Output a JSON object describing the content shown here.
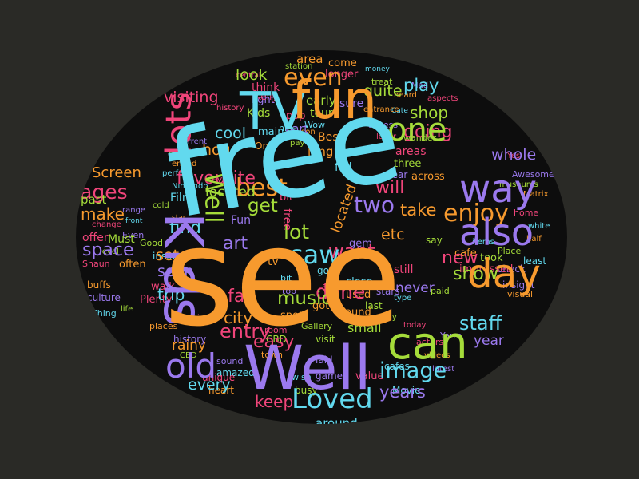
{
  "word_cloud": {
    "background_color": "#2a2a26",
    "oval_color": "#0d0d0d",
    "palette": [
      "#62d9ee",
      "#f79a2e",
      "#9b79ee",
      "#f0457a",
      "#a5dc3a"
    ],
    "words": {
      "free": "free",
      "see": "see",
      "fun": "fun",
      "tv": "TV",
      "kids": "Kids",
      "well_big": "Well",
      "can": "can",
      "also": "also",
      "day": "day",
      "lots": "lots",
      "even": "even",
      "one": "one",
      "way": "way",
      "ages": "ages",
      "well_vert": "Well",
      "old": "old",
      "image": "image",
      "loved": "Loved",
      "saw": "saw",
      "enjoy": "enjoy",
      "best": "best",
      "get": "get",
      "staff": "staff",
      "entry": "entry",
      "look": "look",
      "quite": "quite",
      "play": "play",
      "shop": "shop",
      "visiting": "visiting",
      "make": "make",
      "space": "space",
      "going": "going",
      "whole": "whole",
      "will": "will",
      "two": "two",
      "lot": "lot",
      "art": "art",
      "show": "show",
      "fan": "fan",
      "city": "city",
      "trip": "trip",
      "hour": "hour",
      "cool": "cool",
      "set": "set",
      "find": "find",
      "screen": "Screen",
      "easy": "easy",
      "keep": "keep",
      "every": "every",
      "years": "years",
      "year": "year",
      "new": "new",
      "etc": "etc",
      "take": "take",
      "tour": "tour",
      "early": "early",
      "area": "area",
      "think": "think",
      "sure": "sure",
      "fun_small": "Fun",
      "seen": "seen",
      "miss": "miss",
      "rainy": "rainy",
      "film": "Film",
      "past": "past",
      "offer": "offer",
      "never": "never",
      "done": "done",
      "want": "want",
      "located": "located",
      "favourite": "favourite",
      "must": "Must",
      "music": "music",
      "tv_small": "tv",
      "kids_small": "Kids",
      "long": "long",
      "full": "full",
      "main": "main",
      "part": "part",
      "pop": "pop",
      "small": "small",
      "game": "game",
      "movie": "Movie",
      "value": "value",
      "wish": "wish",
      "around": "around",
      "areas": "areas",
      "across": "across",
      "three": "three",
      "gem": "gem",
      "history": "history",
      "places": "places",
      "inside": "inside",
      "good": "Good",
      "plenty": "Plenty",
      "near": "near",
      "still": "still",
      "close": "close",
      "got": "got",
      "visit": "visit",
      "bit": "bit",
      "heart": "heart",
      "unique": "unique",
      "sound": "sound",
      "amazed": "amazed",
      "one_small": "One",
      "come": "come",
      "longer": "longer",
      "station": "station",
      "entrance": "entrance",
      "aspects": "aspects",
      "wander": "wander",
      "access": "access",
      "lover": "lover",
      "say": "say",
      "least": "least",
      "impressed": "impressed",
      "place": "Place",
      "items": "items",
      "took": "took",
      "cafe": "cafe",
      "check": "Check",
      "insight": "insight",
      "actors": "actors",
      "latest": "latest",
      "visual": "visual",
      "videos": "videos",
      "paid": "paid",
      "type": "type",
      "cafes": "cafes",
      "busy": "busy",
      "today": "today",
      "laid": "laid",
      "may": "may",
      "town": "town",
      "room": "room",
      "top": "top",
      "spot": "spot",
      "thing": "Thing",
      "walk": "walk",
      "life": "life",
      "culture": "culture",
      "buffs": "buffs",
      "shaun": "Shaun",
      "often": "often",
      "level": "level",
      "even_small": "Even",
      "cbd": "CBD",
      "star": "star",
      "change": "change",
      "cold": "cold",
      "ended": "ended",
      "current": "current",
      "nice": "nice",
      "son": "son",
      "pay": "pay",
      "light": "light",
      "wow": "Wow",
      "history2": "history",
      "central": "central",
      "kelly": "Kelly",
      "best_small": "Best",
      "audio": "audio",
      "used": "used",
      "stars": "stars",
      "last": "last",
      "matrix": "Matrix",
      "yarra": "Yarra",
      "awesome": "Awesome",
      "museums": "museums",
      "home": "home",
      "money": "money",
      "treat": "treat",
      "heard": "heard",
      "mad": "Mad",
      "cate": "Cate",
      "white": "white",
      "yes": "Yes",
      "half": "half",
      "range": "range",
      "front": "front",
      "alike": "alike",
      "perfect": "perfect",
      "ever": "ever",
      "gallery": "Gallery",
      "nintendo": "Nintendo"
    }
  }
}
